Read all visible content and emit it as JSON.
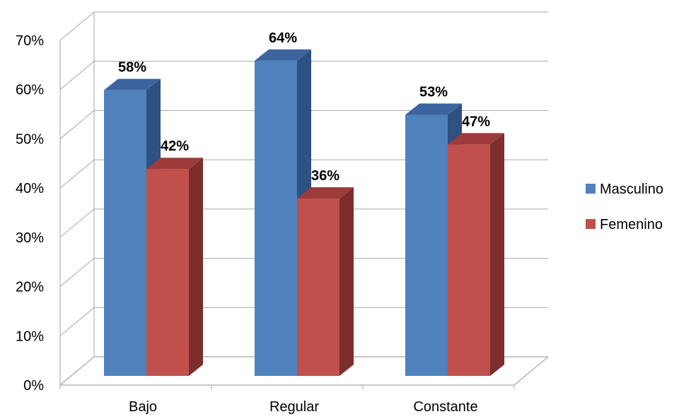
{
  "chart_data": {
    "type": "bar",
    "categories": [
      "Bajo",
      "Regular",
      "Constante"
    ],
    "series": [
      {
        "name": "Masculino",
        "values": [
          58,
          64,
          53
        ],
        "labels": [
          "58%",
          "64%",
          "53%"
        ]
      },
      {
        "name": "Femenino",
        "values": [
          42,
          36,
          47
        ],
        "labels": [
          "42%",
          "36%",
          "47%"
        ]
      }
    ],
    "ylim": [
      0,
      70
    ],
    "y_ticks": [
      "0%",
      "10%",
      "20%",
      "30%",
      "40%",
      "50%",
      "60%",
      "70%"
    ],
    "grid": true,
    "three_d": true,
    "legend_position": "right",
    "colors": {
      "Masculino": {
        "front": "#4f81bd",
        "side": "#2f5181",
        "top": "#3c65a0"
      },
      "Femenino": {
        "front": "#c0504d",
        "side": "#7d2e2c",
        "top": "#9c3b39"
      },
      "grid": "#a6a6a6"
    }
  }
}
